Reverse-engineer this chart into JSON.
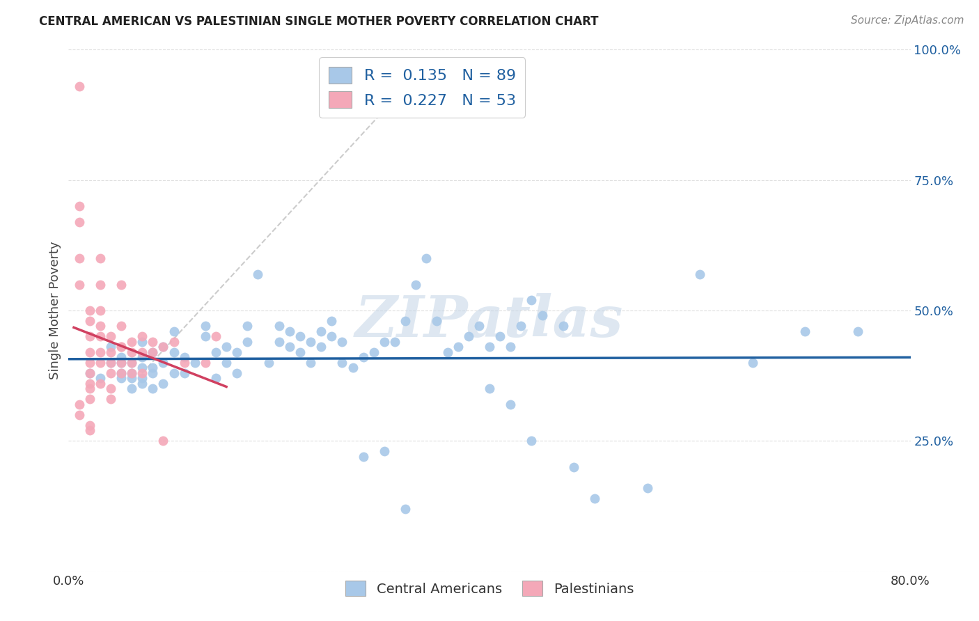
{
  "title": "CENTRAL AMERICAN VS PALESTINIAN SINGLE MOTHER POVERTY CORRELATION CHART",
  "source": "Source: ZipAtlas.com",
  "ylabel": "Single Mother Poverty",
  "xlim": [
    0,
    0.8
  ],
  "ylim": [
    0,
    1.0
  ],
  "xticks": [
    0.0,
    0.1,
    0.2,
    0.3,
    0.4,
    0.5,
    0.6,
    0.7,
    0.8
  ],
  "xticklabels": [
    "0.0%",
    "",
    "",
    "",
    "",
    "",
    "",
    "",
    "80.0%"
  ],
  "yticks": [
    0.0,
    0.25,
    0.5,
    0.75,
    1.0
  ],
  "yticklabels": [
    "",
    "25.0%",
    "50.0%",
    "75.0%",
    "100.0%"
  ],
  "blue_color": "#A8C8E8",
  "pink_color": "#F4A8B8",
  "blue_line_color": "#2060A0",
  "pink_line_color": "#D04060",
  "diag_line_color": "#CCCCCC",
  "R_blue": 0.135,
  "N_blue": 89,
  "R_pink": 0.227,
  "N_pink": 53,
  "watermark": "ZIPatlas",
  "blue_scatter_x": [
    0.02,
    0.03,
    0.04,
    0.04,
    0.05,
    0.05,
    0.05,
    0.05,
    0.06,
    0.06,
    0.06,
    0.06,
    0.07,
    0.07,
    0.07,
    0.07,
    0.07,
    0.08,
    0.08,
    0.08,
    0.08,
    0.09,
    0.09,
    0.09,
    0.1,
    0.1,
    0.1,
    0.11,
    0.11,
    0.12,
    0.13,
    0.13,
    0.14,
    0.14,
    0.15,
    0.15,
    0.16,
    0.16,
    0.17,
    0.17,
    0.18,
    0.19,
    0.2,
    0.2,
    0.21,
    0.21,
    0.22,
    0.22,
    0.23,
    0.23,
    0.24,
    0.24,
    0.25,
    0.25,
    0.26,
    0.26,
    0.27,
    0.28,
    0.29,
    0.3,
    0.31,
    0.32,
    0.33,
    0.34,
    0.35,
    0.36,
    0.37,
    0.38,
    0.39,
    0.4,
    0.41,
    0.42,
    0.43,
    0.44,
    0.45,
    0.47,
    0.48,
    0.4,
    0.42,
    0.44,
    0.5,
    0.55,
    0.6,
    0.65,
    0.7,
    0.75,
    0.28,
    0.3,
    0.32
  ],
  "blue_scatter_y": [
    0.38,
    0.37,
    0.4,
    0.43,
    0.37,
    0.38,
    0.4,
    0.41,
    0.35,
    0.37,
    0.38,
    0.4,
    0.36,
    0.37,
    0.39,
    0.41,
    0.44,
    0.35,
    0.38,
    0.39,
    0.42,
    0.36,
    0.4,
    0.43,
    0.38,
    0.42,
    0.46,
    0.38,
    0.41,
    0.4,
    0.45,
    0.47,
    0.37,
    0.42,
    0.4,
    0.43,
    0.38,
    0.42,
    0.44,
    0.47,
    0.57,
    0.4,
    0.44,
    0.47,
    0.43,
    0.46,
    0.42,
    0.45,
    0.4,
    0.44,
    0.43,
    0.46,
    0.45,
    0.48,
    0.4,
    0.44,
    0.39,
    0.41,
    0.42,
    0.44,
    0.44,
    0.48,
    0.55,
    0.6,
    0.48,
    0.42,
    0.43,
    0.45,
    0.47,
    0.43,
    0.45,
    0.43,
    0.47,
    0.52,
    0.49,
    0.47,
    0.2,
    0.35,
    0.32,
    0.25,
    0.14,
    0.16,
    0.57,
    0.4,
    0.46,
    0.46,
    0.22,
    0.23,
    0.12
  ],
  "pink_scatter_x": [
    0.01,
    0.01,
    0.01,
    0.01,
    0.01,
    0.02,
    0.02,
    0.02,
    0.02,
    0.02,
    0.02,
    0.02,
    0.02,
    0.02,
    0.02,
    0.03,
    0.03,
    0.03,
    0.03,
    0.03,
    0.03,
    0.03,
    0.04,
    0.04,
    0.04,
    0.04,
    0.04,
    0.05,
    0.05,
    0.05,
    0.05,
    0.05,
    0.06,
    0.06,
    0.06,
    0.06,
    0.07,
    0.07,
    0.07,
    0.08,
    0.08,
    0.09,
    0.09,
    0.1,
    0.11,
    0.13,
    0.14,
    0.01,
    0.01,
    0.02,
    0.03,
    0.04,
    0.05
  ],
  "pink_scatter_y": [
    0.93,
    0.7,
    0.67,
    0.6,
    0.55,
    0.5,
    0.48,
    0.45,
    0.42,
    0.4,
    0.38,
    0.36,
    0.35,
    0.33,
    0.27,
    0.6,
    0.55,
    0.5,
    0.47,
    0.45,
    0.42,
    0.4,
    0.45,
    0.42,
    0.4,
    0.38,
    0.33,
    0.55,
    0.47,
    0.43,
    0.4,
    0.38,
    0.44,
    0.42,
    0.4,
    0.38,
    0.45,
    0.42,
    0.38,
    0.44,
    0.42,
    0.43,
    0.25,
    0.44,
    0.4,
    0.4,
    0.45,
    0.32,
    0.3,
    0.28,
    0.36,
    0.35,
    0.43
  ]
}
